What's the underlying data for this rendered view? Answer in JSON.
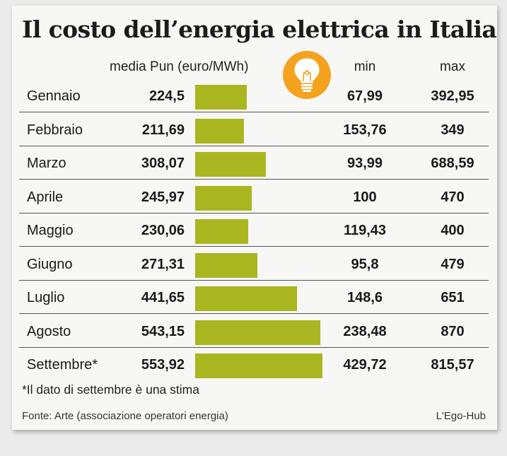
{
  "title": "Il costo dell’energia elettrica in Italia",
  "headers": {
    "media": "media Pun (euro/MWh)",
    "min": "min",
    "max": "max"
  },
  "icon": "light-bulb-icon",
  "colors": {
    "bar": "#a9b61f",
    "icon_circle": "#f5a21f"
  },
  "chart_data": {
    "type": "bar",
    "categories": [
      "Gennaio",
      "Febbraio",
      "Marzo",
      "Aprile",
      "Maggio",
      "Giugno",
      "Luglio",
      "Agosto",
      "Settembre*"
    ],
    "values": [
      224.5,
      211.69,
      308.07,
      245.97,
      230.06,
      271.31,
      441.65,
      543.15,
      553.92
    ],
    "value_labels": [
      "224,5",
      "211,69",
      "308,07",
      "245,97",
      "230,06",
      "271,31",
      "441,65",
      "543,15",
      "553,92"
    ],
    "min": [
      "67,99",
      "153,76",
      "93,99",
      "100",
      "119,43",
      "95,8",
      "148,6",
      "238,48",
      "429,72"
    ],
    "max": [
      "392,95",
      "349",
      "688,59",
      "470",
      "400",
      "479",
      "651",
      "870",
      "815,57"
    ],
    "title": "Il costo dell’energia elettrica in Italia",
    "xlabel": "",
    "ylabel": "media Pun (euro/MWh)"
  },
  "footnote": "*Il dato di settembre è una stima",
  "source": "Fonte: Arte (associazione operatori energia)",
  "credit": "L'Ego-Hub"
}
